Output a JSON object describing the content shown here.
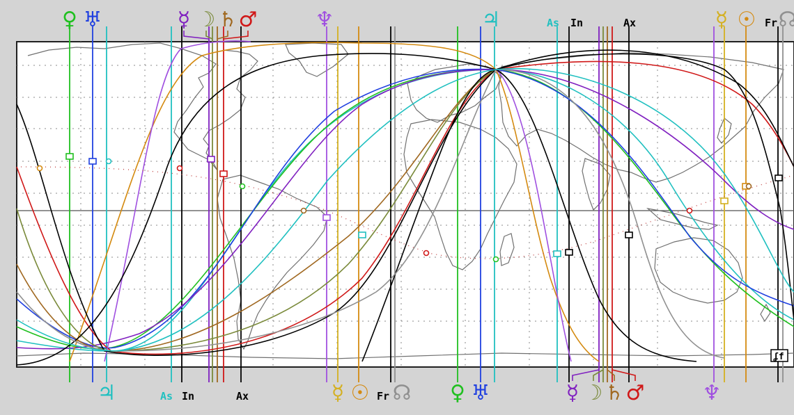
{
  "map": {
    "background": "#d4d4d4",
    "ocean": "#ffffff",
    "land_stroke": "#707070",
    "grid_color": "#909090"
  },
  "colors": {
    "jupiter": "#20c0c0",
    "venus": "#20c020",
    "uranus": "#2040e0",
    "mercury": "#8020c0",
    "moon": "#7a8a3a",
    "saturn": "#a06820",
    "mars": "#d01818",
    "neptune": "#a050e0",
    "sun": "#d48a10",
    "asc": "#20c0c0",
    "black": "#000000",
    "gray": "#909090"
  },
  "top_labels": [
    {
      "id": "venus",
      "text": "♀",
      "kind": "glyph",
      "color": "#20c020"
    },
    {
      "id": "uranus",
      "text": "♅",
      "kind": "glyph",
      "color": "#2040e0"
    },
    {
      "id": "mercury",
      "text": "☿",
      "kind": "glyph",
      "color": "#8020c0"
    },
    {
      "id": "moon",
      "text": "☽",
      "kind": "glyph",
      "color": "#7a8a3a"
    },
    {
      "id": "saturn",
      "text": "♄",
      "kind": "glyph",
      "color": "#a06820"
    },
    {
      "id": "mars",
      "text": "♂",
      "kind": "glyph",
      "color": "#d01818"
    },
    {
      "id": "neptune",
      "text": "♆",
      "kind": "glyph",
      "color": "#a050e0"
    },
    {
      "id": "jupiter",
      "text": "♃",
      "kind": "glyph",
      "color": "#20c0c0"
    },
    {
      "id": "as",
      "text": "As",
      "kind": "abbr",
      "color": "#20c0c0"
    },
    {
      "id": "in",
      "text": "In",
      "kind": "abbr",
      "color": "#000000"
    },
    {
      "id": "ax",
      "text": "Ax",
      "kind": "abbr",
      "color": "#000000"
    },
    {
      "id": "mercury2",
      "text": "☿",
      "kind": "glyph",
      "color": "#d4b020"
    },
    {
      "id": "sun",
      "text": "☉",
      "kind": "glyph",
      "color": "#d48a10"
    },
    {
      "id": "fr",
      "text": "Fr",
      "kind": "abbr",
      "color": "#000000"
    },
    {
      "id": "node",
      "text": "☊",
      "kind": "glyph",
      "color": "#909090"
    }
  ],
  "bottom_labels": [
    {
      "id": "jupiter",
      "text": "♃",
      "kind": "glyph",
      "color": "#20c0c0"
    },
    {
      "id": "as",
      "text": "As",
      "kind": "abbr",
      "color": "#20c0c0"
    },
    {
      "id": "in",
      "text": "In",
      "kind": "abbr",
      "color": "#000000"
    },
    {
      "id": "ax",
      "text": "Ax",
      "kind": "abbr",
      "color": "#000000"
    },
    {
      "id": "mercury2",
      "text": "☿",
      "kind": "glyph",
      "color": "#d4b020"
    },
    {
      "id": "sun",
      "text": "☉",
      "kind": "glyph",
      "color": "#d48a10"
    },
    {
      "id": "fr",
      "text": "Fr",
      "kind": "abbr",
      "color": "#000000"
    },
    {
      "id": "node",
      "text": "☊",
      "kind": "glyph",
      "color": "#909090"
    },
    {
      "id": "venus",
      "text": "♀",
      "kind": "glyph",
      "color": "#20c020"
    },
    {
      "id": "uranus",
      "text": "♅",
      "kind": "glyph",
      "color": "#2040e0"
    },
    {
      "id": "mercury",
      "text": "☿",
      "kind": "glyph",
      "color": "#8020c0"
    },
    {
      "id": "moon",
      "text": "☽",
      "kind": "glyph",
      "color": "#7a8a3a"
    },
    {
      "id": "saturn",
      "text": "♄",
      "kind": "glyph",
      "color": "#a06820"
    },
    {
      "id": "mars",
      "text": "♂",
      "kind": "glyph",
      "color": "#d01818"
    },
    {
      "id": "neptune",
      "text": "♆",
      "kind": "glyph",
      "color": "#a050e0"
    }
  ],
  "corner_badge": "ʆf"
}
